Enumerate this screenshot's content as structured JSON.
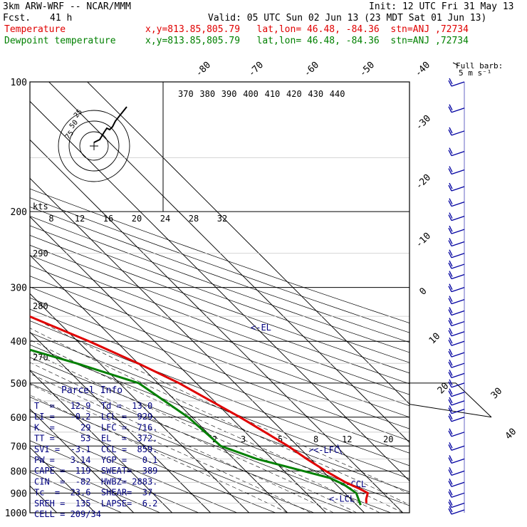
{
  "header": {
    "model": "3km ARW-WRF -- NCAR/MMM",
    "init": "Init: 12 UTC Fri 31 May 13",
    "fcst_label": "Fcst.",
    "fcst_value": "41 h",
    "valid": "Valid: 05 UTC Sun 02 Jun 13 (23 MDT Sat 01 Jun 13)",
    "series": [
      {
        "name": "Temperature",
        "info": "x,y=813.85,805.79   lat,lon= 46.48, -84.36  stn=ANJ ,72734",
        "color": "#e00000"
      },
      {
        "name": "Dewpoint temperature",
        "info": "x,y=813.85,805.79   lat,lon= 46.48, -84.36  stn=ANJ ,72734",
        "color": "#008000"
      }
    ]
  },
  "chart_data": {
    "type": "line",
    "y_axis": "pressure (hPa), log scale",
    "pressure_ticks": [
      100,
      200,
      300,
      400,
      500,
      600,
      700,
      800,
      900,
      1000
    ],
    "pressure_range": [
      100,
      1000
    ],
    "isotherm_labels": [
      -80,
      -70,
      -60,
      -50,
      -40,
      -30,
      -20,
      -10,
      0,
      10,
      20,
      30,
      40
    ],
    "theta_labels": [
      370,
      380,
      390,
      400,
      410,
      420,
      430,
      440
    ],
    "theta_side_labels": [
      290,
      280,
      270
    ],
    "mixing_ratio_labels": [
      "2",
      "3",
      "5",
      "8",
      "12",
      "20"
    ],
    "hodograph_speed_labels": [
      "8",
      "12",
      "16",
      "20",
      "24",
      "28",
      "32"
    ],
    "hodograph_units": "kts",
    "hodograph_ring_labels": [
      "75",
      "50",
      "25"
    ],
    "barb_legend": [
      "Full barb:",
      "5 m s⁻¹"
    ],
    "level_annotations": [
      {
        "label": "<-EL",
        "p": 372
      },
      {
        "label": "<-LFC",
        "p": 716
      },
      {
        "label": "<-CCL",
        "p": 859
      },
      {
        "label": "<-LCL",
        "p": 929
      }
    ],
    "series": [
      {
        "name": "Temperature",
        "color": "#e00000",
        "points": [
          [
            100,
            -57
          ],
          [
            120,
            -58
          ],
          [
            140,
            -57.5
          ],
          [
            160,
            -56
          ],
          [
            180,
            -57
          ],
          [
            200,
            -56
          ],
          [
            215,
            -51
          ],
          [
            250,
            -44
          ],
          [
            300,
            -34
          ],
          [
            350,
            -26
          ],
          [
            400,
            -17
          ],
          [
            450,
            -10
          ],
          [
            500,
            -4.5
          ],
          [
            600,
            2.5
          ],
          [
            700,
            7.5
          ],
          [
            750,
            9
          ],
          [
            800,
            10.8
          ],
          [
            850,
            13
          ],
          [
            880,
            15
          ],
          [
            900,
            16
          ],
          [
            930,
            14
          ],
          [
            950,
            13
          ]
        ]
      },
      {
        "name": "Dewpoint temperature",
        "color": "#008000",
        "points": [
          [
            100,
            -70
          ],
          [
            120,
            -75
          ],
          [
            140,
            -79
          ],
          [
            160,
            -78
          ],
          [
            180,
            -77
          ],
          [
            200,
            -76
          ],
          [
            230,
            -75
          ],
          [
            260,
            -73
          ],
          [
            300,
            -60
          ],
          [
            350,
            -50
          ],
          [
            400,
            -40
          ],
          [
            450,
            -26
          ],
          [
            500,
            -15
          ],
          [
            600,
            -11
          ],
          [
            700,
            -10
          ],
          [
            750,
            -4
          ],
          [
            800,
            5
          ],
          [
            830,
            10
          ],
          [
            860,
            12
          ],
          [
            900,
            13
          ],
          [
            930,
            12
          ],
          [
            960,
            11
          ]
        ]
      }
    ],
    "wind_barbs": [
      100,
      115,
      130,
      145,
      160,
      175,
      190,
      205,
      220,
      235,
      250,
      265,
      280,
      300,
      320,
      340,
      360,
      380,
      400,
      425,
      450,
      475,
      500,
      525,
      550,
      575,
      600,
      650,
      700,
      750,
      800,
      850,
      900,
      950,
      985
    ]
  },
  "parcel_info": {
    "title": "Parcel Info",
    "rows": [
      "T  =   12.9  Td =  13.0",
      "LI =   -0.2  LCL =  929.",
      "K  =     29  LFC =  716.",
      "TT =     53  EL  =  372.",
      "SVI =  -3.1  CCL =  859.",
      "PW =   3.14  YGP =   0.1",
      "CAPE =  119  SWEAT=  389",
      "CIN  =  -82  HWBZ= 2883.",
      "Tc  =  23.6  SHEAR=  37.",
      "SREH =  135  LAPSE=  6.2",
      "CELL = 209/34"
    ]
  }
}
